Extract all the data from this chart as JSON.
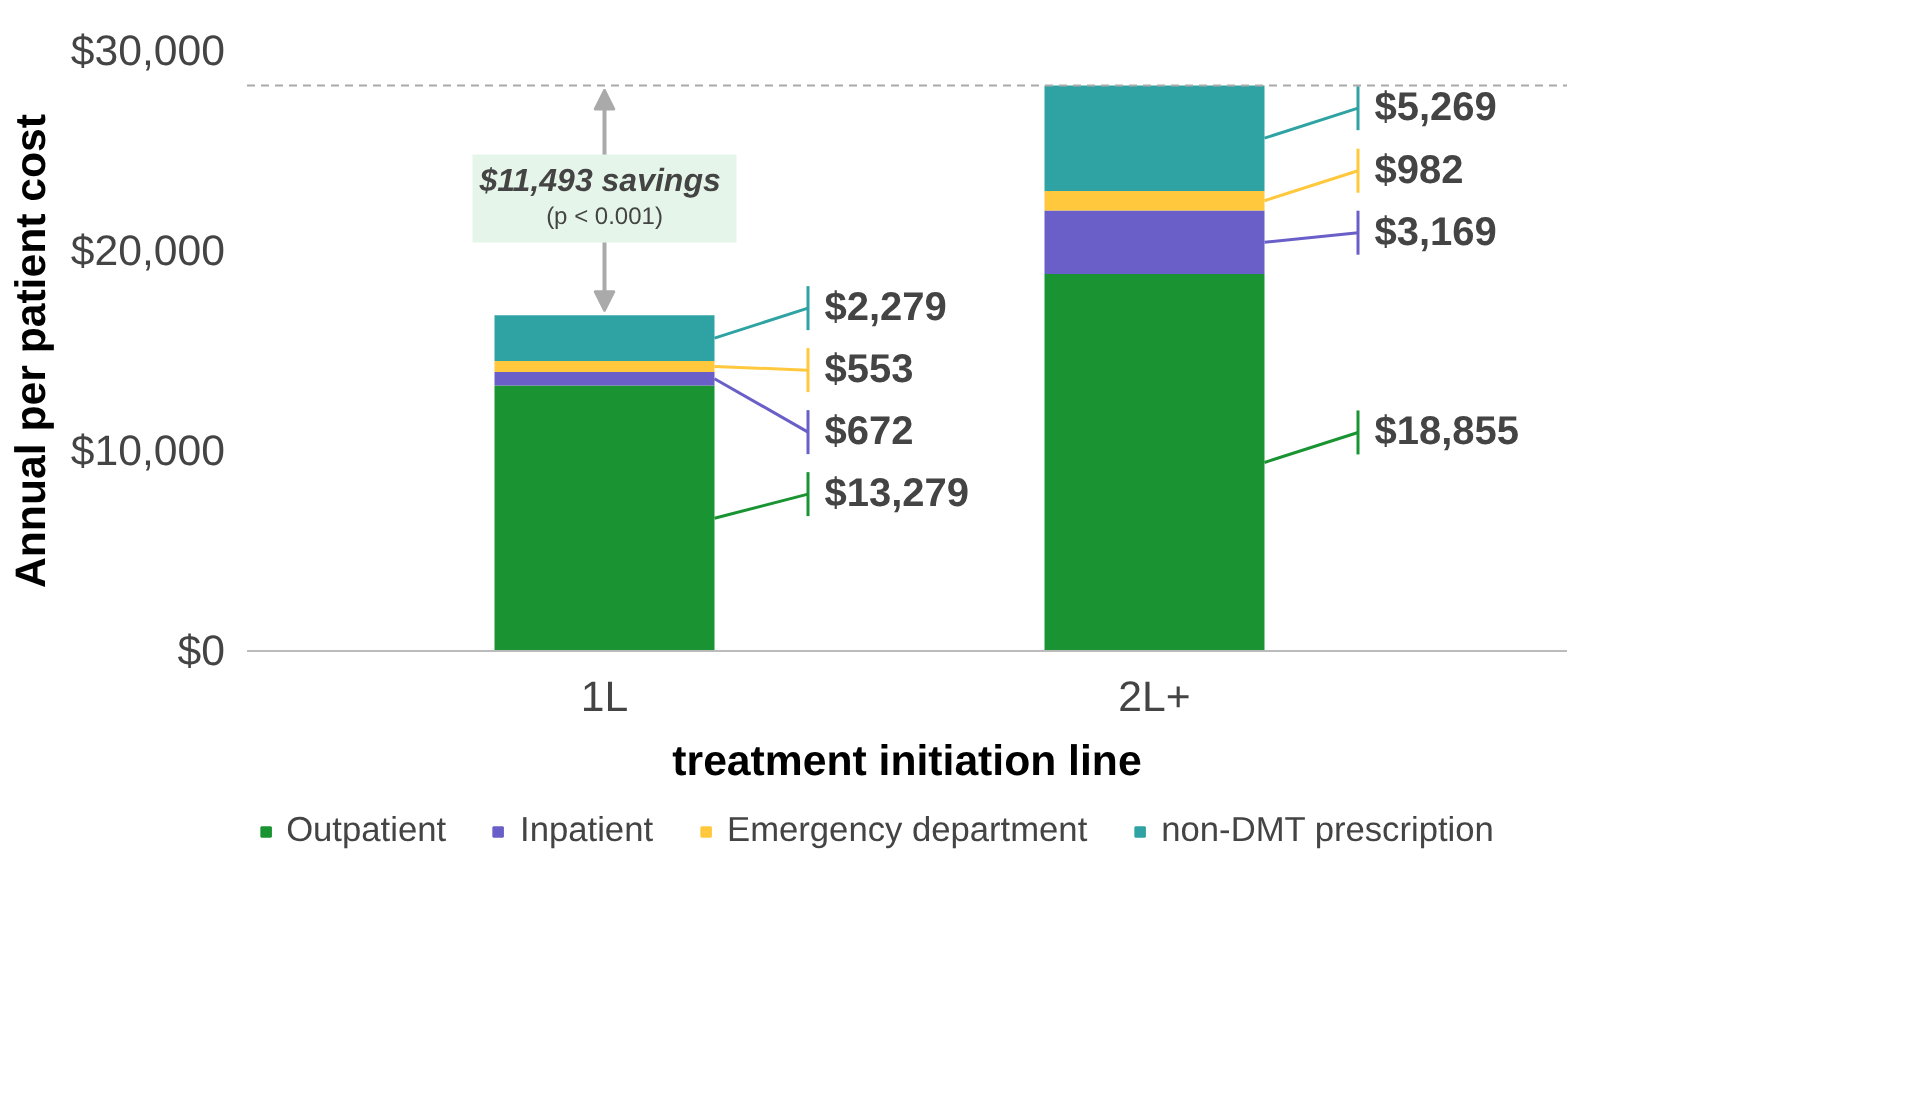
{
  "chart_data": {
    "type": "bar",
    "stacked": true,
    "xlabel": "treatment initiation line",
    "ylabel": "Annual per patient cost",
    "categories": [
      "1L",
      "2L+"
    ],
    "series": [
      {
        "name": "Outpatient",
        "color": "#1a9432",
        "values": [
          13279,
          18855
        ],
        "value_labels": [
          "$13,279",
          "$18,855"
        ]
      },
      {
        "name": "Inpatient",
        "color": "#6a5fc8",
        "values": [
          672,
          3169
        ],
        "value_labels": [
          "$672",
          "$3,169"
        ]
      },
      {
        "name": "Emergency department",
        "color": "#ffc83d",
        "values": [
          553,
          982
        ],
        "value_labels": [
          "$553",
          "$982"
        ]
      },
      {
        "name": "non-DMT prescription",
        "color": "#2fa3a3",
        "values": [
          2279,
          5269
        ],
        "value_labels": [
          "$2,279",
          "$5,269"
        ]
      }
    ],
    "ylim": [
      0,
      30000
    ],
    "yticks": [
      {
        "value": 0,
        "label": "$0"
      },
      {
        "value": 10000,
        "label": "$10,000"
      },
      {
        "value": 20000,
        "label": "$20,000"
      },
      {
        "value": 30000,
        "label": "$30,000"
      }
    ],
    "ref_lines": [
      {
        "axis": "y",
        "value": 28275,
        "color": "#aaaaaa",
        "line_style": "dashed"
      }
    ],
    "annotations": [
      "$11,493  savings",
      "(p < 0.001)"
    ],
    "grid": false,
    "legend": "bottom"
  }
}
